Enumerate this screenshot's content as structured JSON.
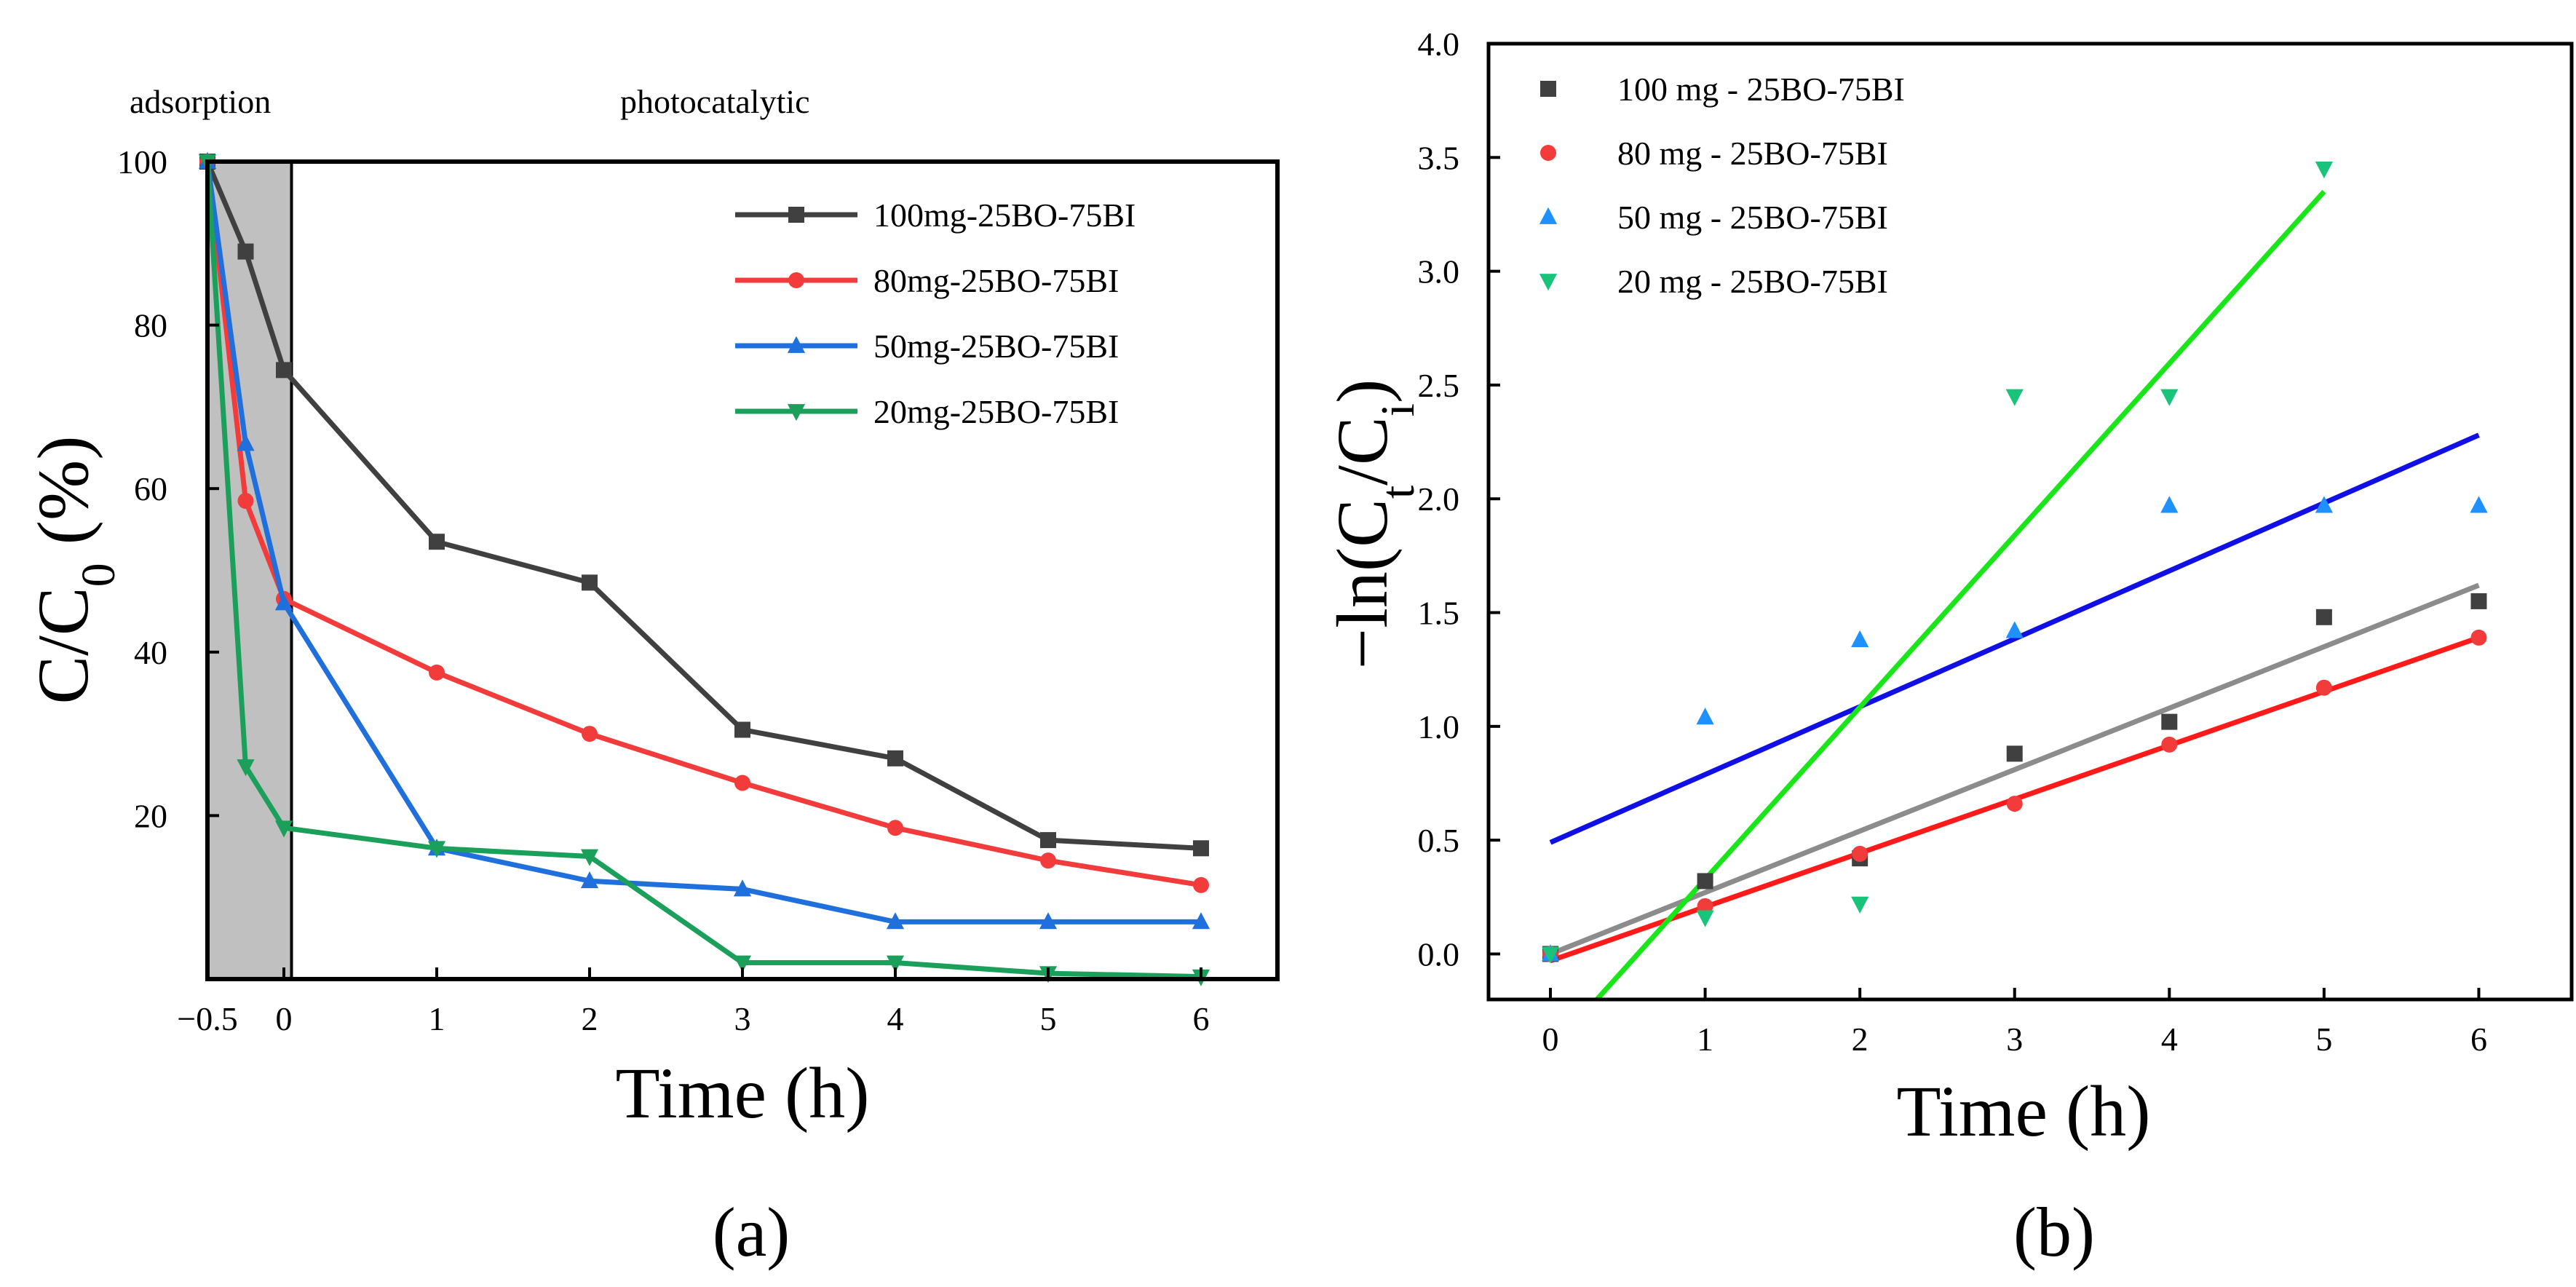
{
  "panels": {
    "a": {
      "label": "(a)",
      "phase_left": "adsorption",
      "phase_right": "photocatalytic"
    },
    "b": {
      "label": "(b)"
    }
  },
  "chart_data": [
    {
      "id": "a",
      "type": "line",
      "title": "",
      "xlabel": "Time (h)",
      "ylabel": "C/C0 (%)",
      "ylabel_main": "C/C",
      "ylabel_sub": "0",
      "ylabel_suffix": " (%)",
      "xlim": [
        -0.5,
        6.5
      ],
      "ylim": [
        0,
        100
      ],
      "x_ticks": [
        -0.5,
        0,
        1,
        2,
        3,
        4,
        5,
        6
      ],
      "x_tick_labels": [
        "−0.5",
        "0",
        "1",
        "2",
        "3",
        "4",
        "5",
        "6"
      ],
      "y_ticks": [
        20,
        40,
        60,
        80,
        100
      ],
      "y_tick_labels": [
        "20",
        "40",
        "60",
        "80",
        "100"
      ],
      "shaded_region": [
        -0.5,
        0.05
      ],
      "legend_position": "top-right",
      "series": [
        {
          "name": "100mg-25BO-75BI",
          "color": "#404040",
          "marker": "square",
          "x": [
            -0.5,
            -0.25,
            0,
            1,
            2,
            3,
            4,
            5,
            6
          ],
          "y": [
            100,
            89,
            74.5,
            53.5,
            48.5,
            30.5,
            27,
            17,
            16
          ]
        },
        {
          "name": "80mg-25BO-75BI",
          "color": "#f23c3c",
          "marker": "circle",
          "x": [
            -0.5,
            -0.25,
            0,
            1,
            2,
            3,
            4,
            5,
            6
          ],
          "y": [
            100,
            58.5,
            46.5,
            37.5,
            30,
            24,
            18.5,
            14.5,
            11.5
          ]
        },
        {
          "name": "50mg-25BO-75BI",
          "color": "#1f6fdc",
          "marker": "triangle-up",
          "x": [
            -0.5,
            -0.25,
            0,
            1,
            2,
            3,
            4,
            5,
            6
          ],
          "y": [
            100,
            65.5,
            46,
            16,
            12,
            11,
            7,
            7,
            7
          ]
        },
        {
          "name": "20mg-25BO-75BI",
          "color": "#1aa05a",
          "marker": "triangle-down",
          "x": [
            -0.5,
            -0.25,
            0,
            1,
            2,
            3,
            4,
            5,
            6
          ],
          "y": [
            100,
            26,
            18.5,
            16,
            15,
            2,
            2,
            0.7,
            0.3
          ]
        }
      ]
    },
    {
      "id": "b",
      "type": "scatter",
      "title": "",
      "xlabel": "Time (h)",
      "ylabel": "−ln(Ct/Ci)",
      "ylabel_main": "−ln(C",
      "ylabel_sub1": "t",
      "ylabel_mid": "/C",
      "ylabel_sub2": "i",
      "ylabel_end": ")",
      "xlim": [
        -0.4,
        6.6
      ],
      "ylim": [
        -0.2,
        4.0
      ],
      "x_ticks": [
        0,
        1,
        2,
        3,
        4,
        5,
        6
      ],
      "x_tick_labels": [
        "0",
        "1",
        "2",
        "3",
        "4",
        "5",
        "6"
      ],
      "y_ticks": [
        0,
        0.5,
        1.0,
        1.5,
        2.0,
        2.5,
        3.0,
        3.5,
        4.0
      ],
      "y_tick_labels": [
        "0.0",
        "0.5",
        "1.0",
        "1.5",
        "2.0",
        "2.5",
        "3.0",
        "3.5",
        "4.0"
      ],
      "legend_position": "top-left",
      "series": [
        {
          "name": "100 mg - 25BO-75BI",
          "color": "#404040",
          "fit_color": "#8c8c8c",
          "marker": "square",
          "x": [
            0,
            1,
            2,
            3,
            4,
            5,
            6
          ],
          "y": [
            0.0,
            0.32,
            0.42,
            0.88,
            1.02,
            1.48,
            1.55
          ],
          "fit": {
            "x": [
              0,
              6
            ],
            "y": [
              0.0,
              1.62
            ]
          }
        },
        {
          "name": "80 mg - 25BO-75BI",
          "color": "#f23c3c",
          "fit_color": "#ff1a1a",
          "marker": "circle",
          "x": [
            0,
            1,
            2,
            3,
            4,
            5,
            6
          ],
          "y": [
            0.0,
            0.21,
            0.44,
            0.66,
            0.92,
            1.17,
            1.39
          ],
          "fit": {
            "x": [
              0,
              6
            ],
            "y": [
              -0.03,
              1.39
            ]
          }
        },
        {
          "name": "50 mg - 25BO-75BI",
          "color": "#1e90ff",
          "fit_color": "#1010e6",
          "marker": "triangle-up",
          "x": [
            0,
            1,
            2,
            3,
            4,
            5,
            6
          ],
          "y": [
            0.0,
            1.04,
            1.38,
            1.42,
            1.97,
            1.97,
            1.97
          ],
          "fit": {
            "x": [
              0,
              6
            ],
            "y": [
              0.49,
              2.28
            ]
          }
        },
        {
          "name": "20 mg - 25BO-75BI",
          "color": "#19c47a",
          "fit_color": "#19e619",
          "marker": "triangle-down",
          "x": [
            0,
            1,
            2,
            3,
            4,
            5
          ],
          "y": [
            0.0,
            0.16,
            0.22,
            2.45,
            2.45,
            3.45
          ],
          "fit": {
            "x": [
              0.3,
              5
            ],
            "y": [
              -0.2,
              3.35
            ]
          }
        }
      ]
    }
  ]
}
